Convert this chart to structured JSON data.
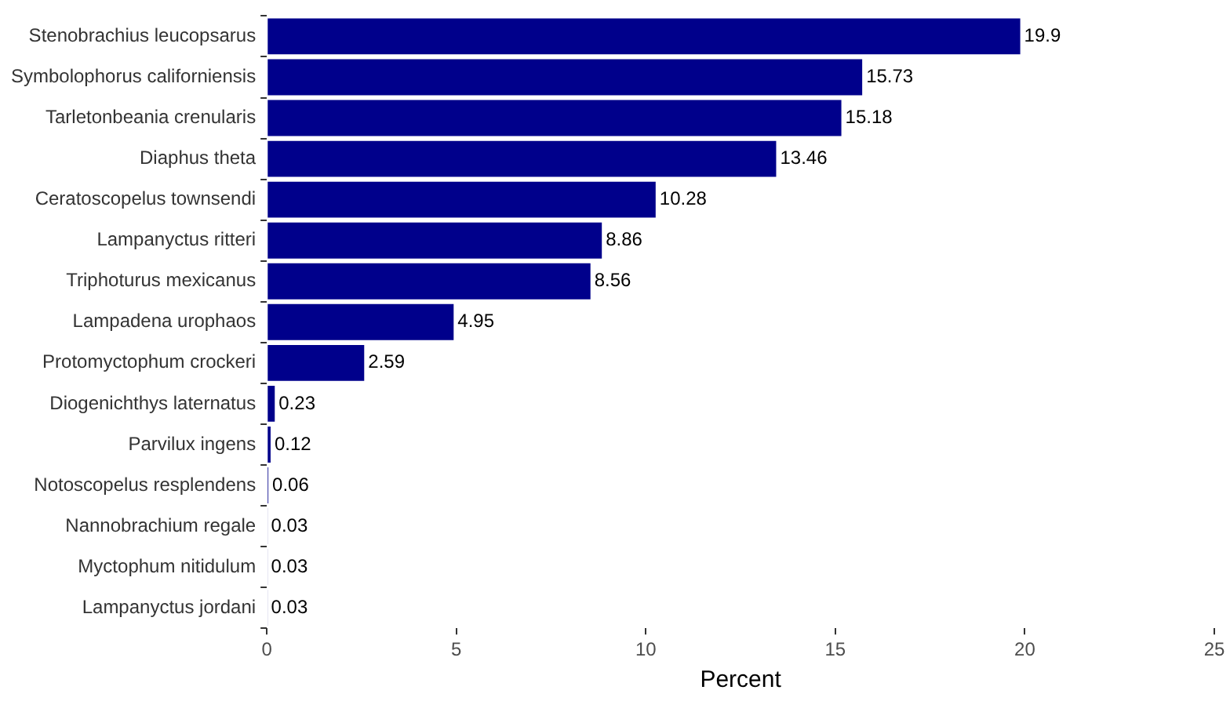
{
  "chart_data": {
    "type": "bar",
    "orientation": "horizontal",
    "xlabel": "Percent",
    "categories": [
      "Stenobrachius leucopsarus",
      "Symbolophorus californiensis",
      "Tarletonbeania crenularis",
      "Diaphus theta",
      "Ceratoscopelus townsendi",
      "Lampanyctus ritteri",
      "Triphoturus mexicanus",
      "Lampadena urophaos",
      "Protomyctophum crockeri",
      "Diogenichthys laternatus",
      "Parvilux ingens",
      "Notoscopelus resplendens",
      "Nannobrachium regale",
      "Myctophum nitidulum",
      "Lampanyctus jordani"
    ],
    "values": [
      19.9,
      15.73,
      15.18,
      13.46,
      10.28,
      8.86,
      8.56,
      4.95,
      2.59,
      0.23,
      0.12,
      0.06,
      0.03,
      0.03,
      0.03
    ],
    "color": "#00008b",
    "xlim": [
      0,
      25
    ],
    "xticks": [
      0,
      5,
      10,
      15,
      20,
      25
    ],
    "grid": false,
    "legend": false,
    "data_labels": true
  }
}
